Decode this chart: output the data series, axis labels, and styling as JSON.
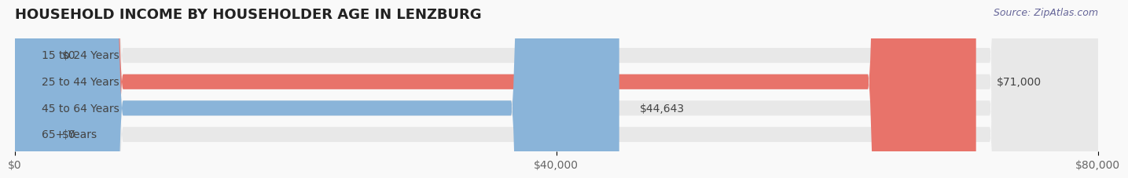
{
  "title": "HOUSEHOLD INCOME BY HOUSEHOLDER AGE IN LENZBURG",
  "source": "Source: ZipAtlas.com",
  "categories": [
    "15 to 24 Years",
    "25 to 44 Years",
    "45 to 64 Years",
    "65+ Years"
  ],
  "values": [
    0,
    71000,
    44643,
    0
  ],
  "bar_colors": [
    "#f5c99a",
    "#e8736a",
    "#8ab4d9",
    "#c9a8d4"
  ],
  "bar_bg_color": "#efefef",
  "xlim": [
    0,
    80000
  ],
  "xticks": [
    0,
    40000,
    80000
  ],
  "xtick_labels": [
    "$0",
    "$40,000",
    "$80,000"
  ],
  "value_labels": [
    "$0",
    "$71,000",
    "$44,643",
    "$0"
  ],
  "background_color": "#f9f9f9",
  "title_fontsize": 13,
  "label_fontsize": 10,
  "tick_fontsize": 10,
  "source_fontsize": 9
}
